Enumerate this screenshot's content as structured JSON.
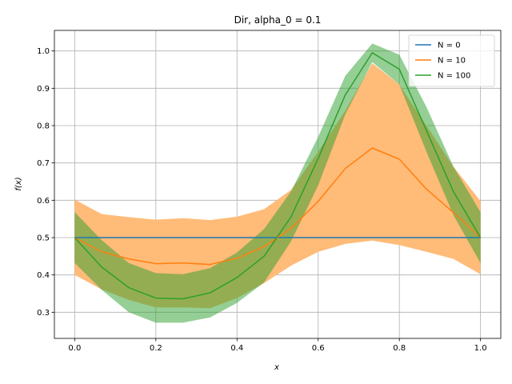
{
  "chart_data": {
    "type": "line",
    "title": "Dir, alpha_0 = 0.1",
    "xlabel": "x",
    "ylabel": "f(x)",
    "xlim": [
      -0.05,
      1.05
    ],
    "ylim": [
      0.23,
      1.055
    ],
    "xticks": [
      0.0,
      0.2,
      0.4,
      0.6,
      0.8,
      1.0
    ],
    "xtick_labels": [
      "0.0",
      "0.2",
      "0.4",
      "0.6",
      "0.8",
      "1.0"
    ],
    "yticks": [
      0.3,
      0.4,
      0.5,
      0.6,
      0.7,
      0.8,
      0.9,
      1.0
    ],
    "ytick_labels": [
      "0.3",
      "0.4",
      "0.5",
      "0.6",
      "0.7",
      "0.8",
      "0.9",
      "1.0"
    ],
    "grid": true,
    "legend_position": "top-right",
    "x": [
      0.0,
      0.0667,
      0.1333,
      0.2,
      0.2667,
      0.3333,
      0.4,
      0.4667,
      0.5333,
      0.6,
      0.6667,
      0.7333,
      0.8,
      0.8667,
      0.9333,
      1.0
    ],
    "series": [
      {
        "name": "N = 0",
        "color": "#1f77b4",
        "values": [
          0.5,
          0.5,
          0.5,
          0.5,
          0.5,
          0.5,
          0.5,
          0.5,
          0.5,
          0.5,
          0.5,
          0.5,
          0.5,
          0.5,
          0.5,
          0.5
        ],
        "band_color": "#1f77b4",
        "lower": [
          0.5,
          0.5,
          0.5,
          0.5,
          0.5,
          0.5,
          0.5,
          0.5,
          0.5,
          0.5,
          0.5,
          0.5,
          0.5,
          0.5,
          0.5,
          0.5
        ],
        "upper": [
          0.5,
          0.5,
          0.5,
          0.5,
          0.5,
          0.5,
          0.5,
          0.5,
          0.5,
          0.5,
          0.5,
          0.5,
          0.5,
          0.5,
          0.5,
          0.5
        ]
      },
      {
        "name": "N = 10",
        "color": "#ff7f0e",
        "values": [
          0.5,
          0.462,
          0.443,
          0.43,
          0.432,
          0.428,
          0.445,
          0.476,
          0.525,
          0.597,
          0.685,
          0.74,
          0.71,
          0.63,
          0.567,
          0.5
        ],
        "band_color": "#ffbb78",
        "lower": [
          0.4,
          0.361,
          0.333,
          0.313,
          0.313,
          0.311,
          0.338,
          0.378,
          0.425,
          0.462,
          0.483,
          0.492,
          0.48,
          0.462,
          0.443,
          0.402
        ],
        "upper": [
          0.602,
          0.563,
          0.555,
          0.548,
          0.552,
          0.547,
          0.556,
          0.576,
          0.628,
          0.73,
          0.84,
          0.967,
          0.91,
          0.8,
          0.69,
          0.598
        ]
      },
      {
        "name": "N = 100",
        "color": "#2ca02c",
        "values": [
          0.5,
          0.421,
          0.366,
          0.338,
          0.336,
          0.352,
          0.393,
          0.45,
          0.556,
          0.712,
          0.882,
          0.995,
          0.951,
          0.787,
          0.623,
          0.5
        ],
        "band_color": "#2ca02c",
        "lower": [
          0.432,
          0.36,
          0.3,
          0.272,
          0.272,
          0.286,
          0.325,
          0.38,
          0.49,
          0.64,
          0.83,
          0.97,
          0.91,
          0.73,
          0.56,
          0.432
        ],
        "upper": [
          0.568,
          0.493,
          0.432,
          0.405,
          0.402,
          0.418,
          0.46,
          0.523,
          0.624,
          0.77,
          0.933,
          1.02,
          0.99,
          0.85,
          0.69,
          0.568
        ]
      }
    ]
  }
}
